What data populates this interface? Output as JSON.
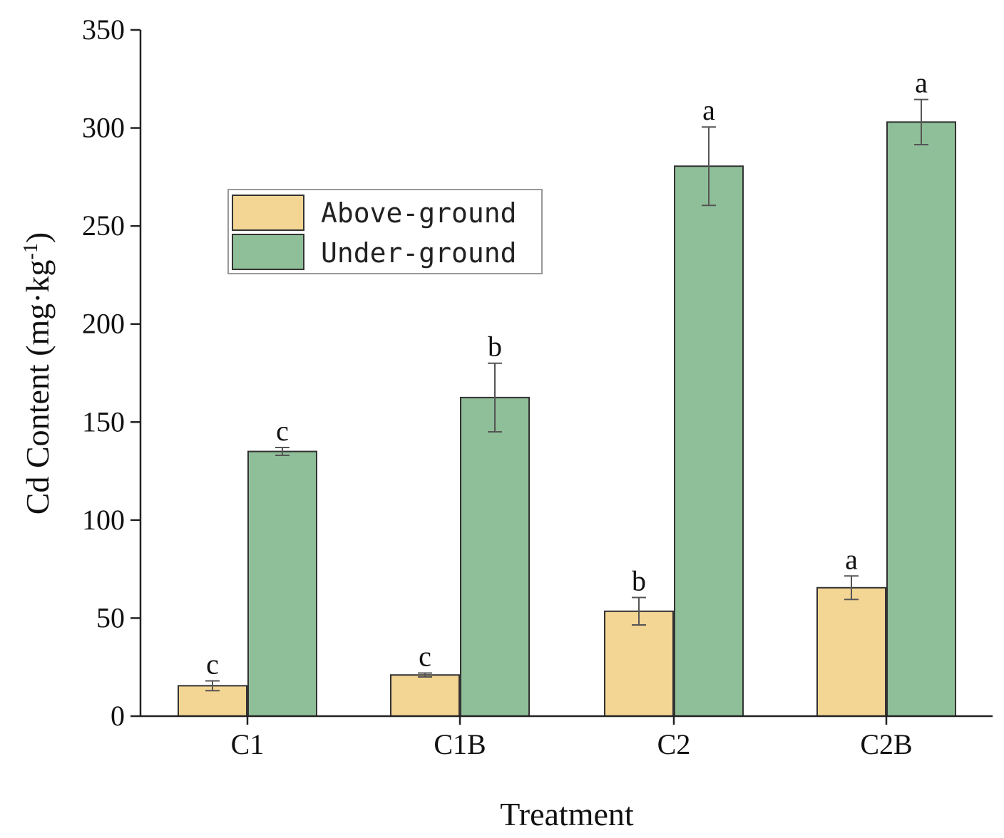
{
  "chart_data": {
    "type": "bar",
    "title": "",
    "xlabel": "Treatment",
    "ylabel": "Cd Content (mg·kg",
    "ylabel_sup": "-1",
    "ylabel_close": ")",
    "ylim": [
      0,
      350
    ],
    "yticks": [
      "0",
      "50",
      "100",
      "150",
      "200",
      "250",
      "300",
      "350"
    ],
    "ytick_values": [
      0,
      50,
      100,
      150,
      200,
      250,
      300,
      350
    ],
    "categories": [
      "C1",
      "C1B",
      "C2",
      "C2B"
    ],
    "series": [
      {
        "name": "Above-ground",
        "color": "#f3d594",
        "values": [
          15.5,
          21,
          53.5,
          65.5
        ],
        "errors": [
          2.5,
          1,
          7,
          6
        ],
        "letters": [
          "c",
          "c",
          "b",
          "a"
        ]
      },
      {
        "name": "Under-ground",
        "color": "#8fbf98",
        "values": [
          135,
          162.5,
          280.5,
          303
        ],
        "errors": [
          2,
          17.5,
          20,
          11.5
        ],
        "letters": [
          "c",
          "b",
          "a",
          "a"
        ]
      }
    ],
    "legend_position": "upper-left",
    "grid": false
  }
}
